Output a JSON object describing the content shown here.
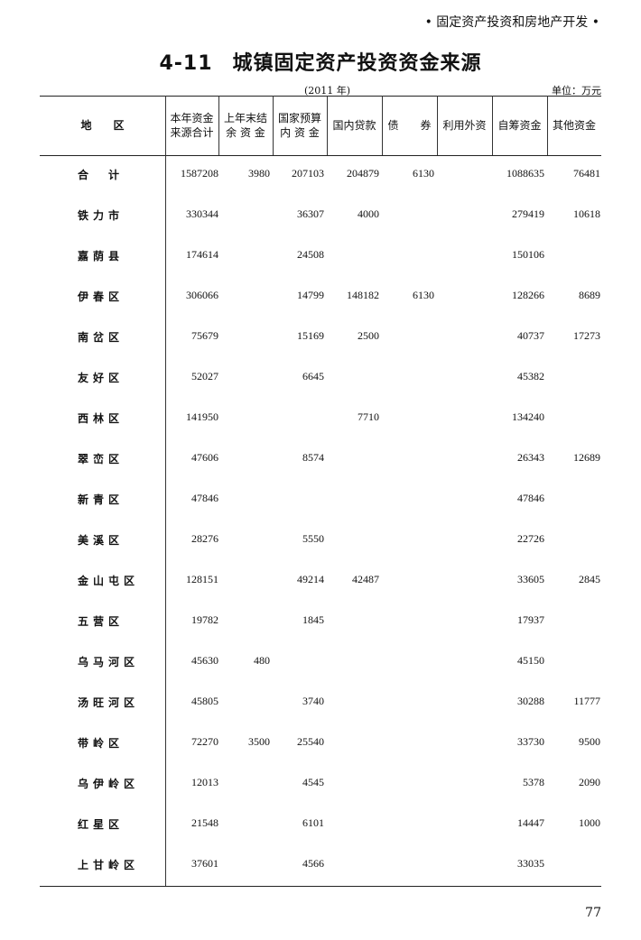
{
  "running_header": "• 固定资产投资和房地产开发 •",
  "table_number": "4-11",
  "table_title": "城镇固定资产投资资金来源",
  "year_note": "(2011 年)",
  "unit_note": "单位：万元",
  "columns": [
    "地　　区",
    "本年资金\n来源合计",
    "上年末结\n余 资 金",
    "国家预算\n内 资 金",
    "国内贷款",
    "债　　券",
    "利用外资",
    "自筹资金",
    "其他资金"
  ],
  "rows": [
    {
      "region": "合　计",
      "values": [
        "1587208",
        "3980",
        "207103",
        "204879",
        "6130",
        "",
        "1088635",
        "76481"
      ]
    },
    {
      "region": "铁力市",
      "values": [
        "330344",
        "",
        "36307",
        "4000",
        "",
        "",
        "279419",
        "10618"
      ]
    },
    {
      "region": "嘉荫县",
      "values": [
        "174614",
        "",
        "24508",
        "",
        "",
        "",
        "150106",
        ""
      ]
    },
    {
      "region": "伊春区",
      "values": [
        "306066",
        "",
        "14799",
        "148182",
        "6130",
        "",
        "128266",
        "8689"
      ]
    },
    {
      "region": "南岔区",
      "values": [
        "75679",
        "",
        "15169",
        "2500",
        "",
        "",
        "40737",
        "17273"
      ]
    },
    {
      "region": "友好区",
      "values": [
        "52027",
        "",
        "6645",
        "",
        "",
        "",
        "45382",
        ""
      ]
    },
    {
      "region": "西林区",
      "values": [
        "141950",
        "",
        "",
        "7710",
        "",
        "",
        "134240",
        ""
      ]
    },
    {
      "region": "翠峦区",
      "values": [
        "47606",
        "",
        "8574",
        "",
        "",
        "",
        "26343",
        "12689"
      ]
    },
    {
      "region": "新青区",
      "values": [
        "47846",
        "",
        "",
        "",
        "",
        "",
        "47846",
        ""
      ]
    },
    {
      "region": "美溪区",
      "values": [
        "28276",
        "",
        "5550",
        "",
        "",
        "",
        "22726",
        ""
      ]
    },
    {
      "region": "金山屯区",
      "values": [
        "128151",
        "",
        "49214",
        "42487",
        "",
        "",
        "33605",
        "2845"
      ]
    },
    {
      "region": "五营区",
      "values": [
        "19782",
        "",
        "1845",
        "",
        "",
        "",
        "17937",
        ""
      ]
    },
    {
      "region": "乌马河区",
      "values": [
        "45630",
        "480",
        "",
        "",
        "",
        "",
        "45150",
        ""
      ]
    },
    {
      "region": "汤旺河区",
      "values": [
        "45805",
        "",
        "3740",
        "",
        "",
        "",
        "30288",
        "11777"
      ]
    },
    {
      "region": "带岭区",
      "values": [
        "72270",
        "3500",
        "25540",
        "",
        "",
        "",
        "33730",
        "9500"
      ]
    },
    {
      "region": "乌伊岭区",
      "values": [
        "12013",
        "",
        "4545",
        "",
        "",
        "",
        "5378",
        "2090"
      ]
    },
    {
      "region": "红星区",
      "values": [
        "21548",
        "",
        "6101",
        "",
        "",
        "",
        "14447",
        "1000"
      ]
    },
    {
      "region": "上甘岭区",
      "values": [
        "37601",
        "",
        "4566",
        "",
        "",
        "",
        "33035",
        ""
      ]
    }
  ],
  "page_number": "77"
}
